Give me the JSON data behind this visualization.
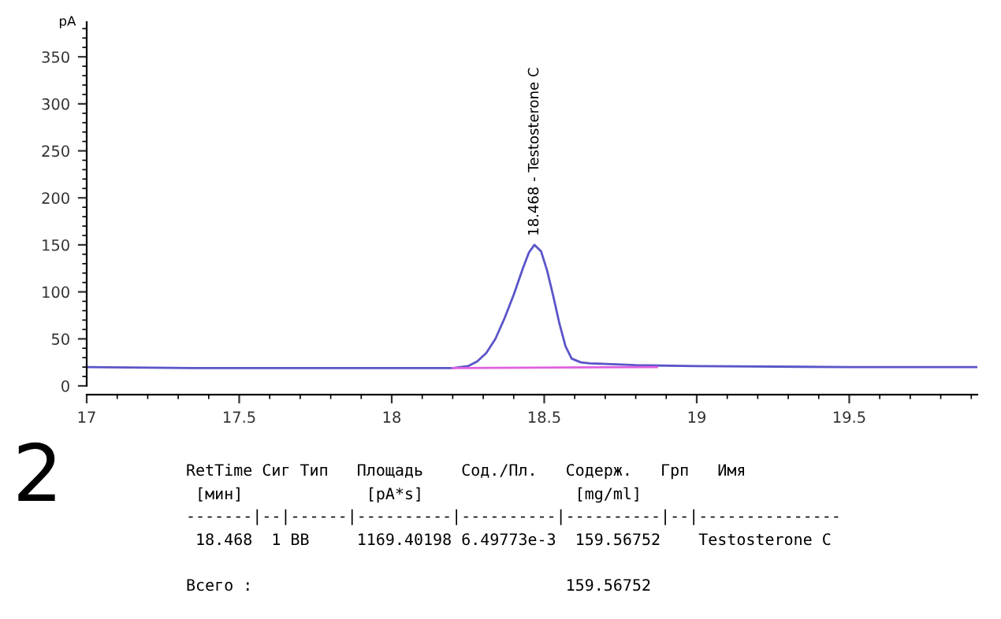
{
  "chart_data": {
    "type": "line",
    "ylabel": "pA",
    "xlim": [
      17,
      19.92
    ],
    "ylim": [
      0,
      387
    ],
    "xticks": [
      17,
      17.5,
      18,
      18.5,
      19,
      19.5
    ],
    "yticks": [
      0,
      50,
      100,
      150,
      200,
      250,
      300,
      350
    ],
    "grid": false,
    "series": [
      {
        "color": "#5a55c8",
        "x": [
          17,
          17.35,
          17.7,
          18.0,
          18.2,
          18.25,
          18.28,
          18.31,
          18.34,
          18.37,
          18.4,
          18.43,
          18.45,
          18.468,
          18.49,
          18.51,
          18.53,
          18.55,
          18.57,
          18.59,
          18.62,
          18.65,
          18.8,
          19.0,
          19.5,
          19.92
        ],
        "values": [
          20,
          19,
          19,
          19,
          19,
          21,
          26,
          35,
          50,
          72,
          97,
          125,
          142,
          150,
          143,
          122,
          95,
          66,
          42,
          29,
          25,
          24,
          22,
          21,
          20,
          20
        ]
      },
      {
        "color": "#e060e0",
        "x": [
          18.2,
          18.87
        ],
        "values": [
          19,
          20
        ]
      }
    ],
    "annotations": [
      {
        "text": "18.468 - Testosterone C",
        "x": 18.468,
        "y": 150
      },
      "2",
      "RetTime Сиг Тип   Площадь    Сод./Пл.   Содерж.   Грп   Имя",
      " [мин]             [pA*s]                [mg/ml]",
      "-------|--|------|----------|----------|----------|--|---------------",
      " 18.468  1 BB     1169.40198 6.49773e-3  159.56752    Testosterone C",
      "Всего :                                 159.56752"
    ]
  }
}
